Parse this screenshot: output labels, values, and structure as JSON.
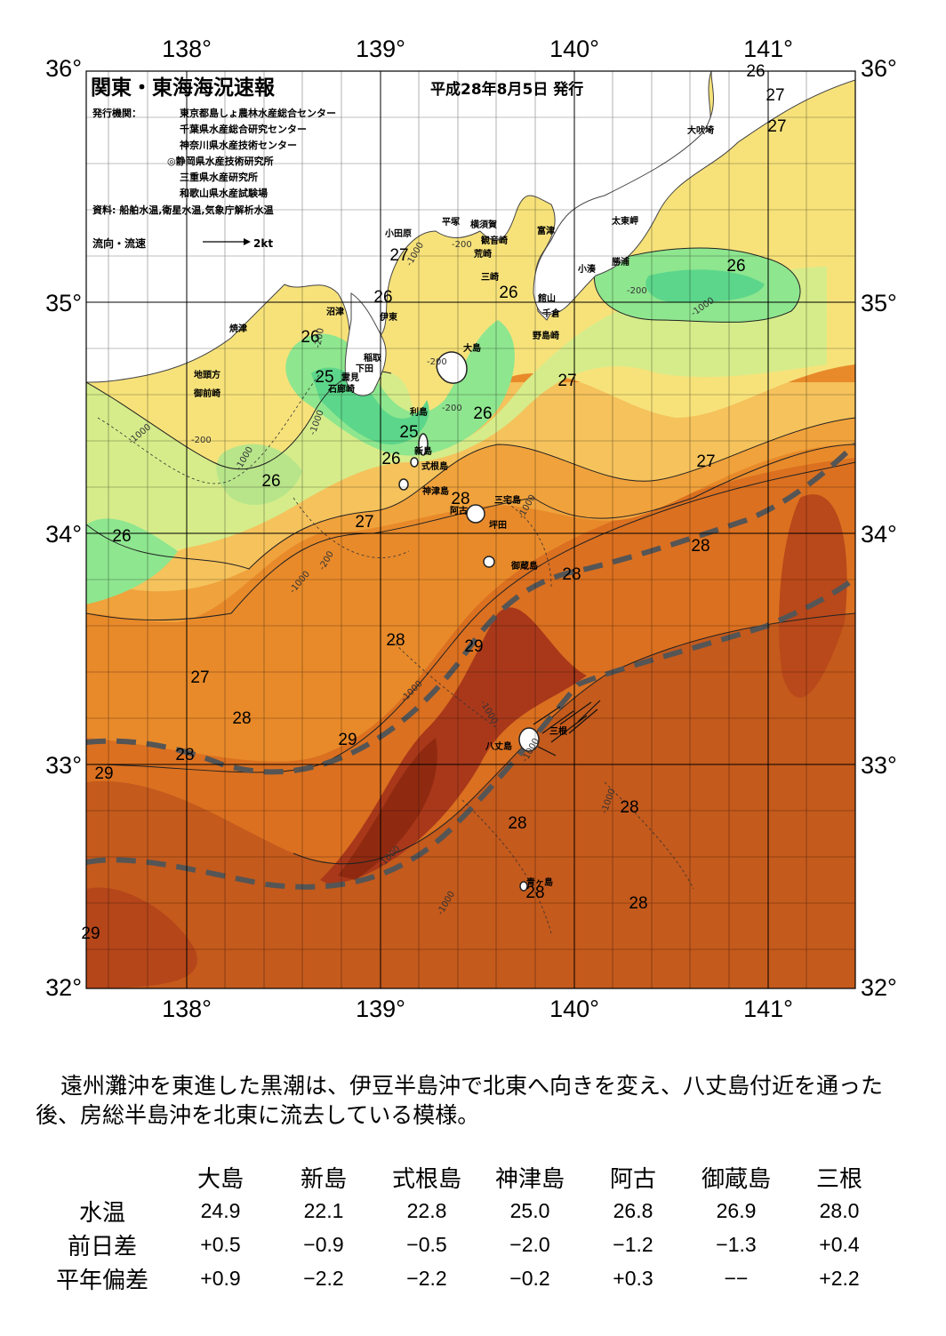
{
  "header": {
    "title": "関東・東海海況速報",
    "issue_date": "平成28年8月5日 発行",
    "issuer_label": "発行機関：",
    "issuers": [
      "東京都島しょ農林水産総合センター",
      "千葉県水産総合研究センター",
      "神奈川県水産技術センター",
      "◎静岡県水産技術研究所",
      "三重県水産研究所",
      "和歌山県水産試験場"
    ],
    "source": "資料: 船舶水温,衛星水温,気象庁解析水温",
    "current_legend": "流向・流速",
    "current_scale": "2kt"
  },
  "axes": {
    "lon_labels": [
      "138°",
      "139°",
      "140°",
      "141°"
    ],
    "lat_labels": [
      "36°",
      "35°",
      "34°",
      "33°",
      "32°"
    ]
  },
  "isotherm_labels": [
    "26",
    "27",
    "27",
    "27",
    "26",
    "26",
    "26",
    "26",
    "25",
    "27",
    "26",
    "25",
    "26",
    "27",
    "26",
    "26",
    "28",
    "27",
    "28",
    "28",
    "28",
    "28",
    "29",
    "27",
    "28",
    "29",
    "28",
    "29",
    "28",
    "28",
    "28",
    "28",
    "28",
    "29"
  ],
  "depth_labels": [
    "-200",
    "-1000",
    "-200",
    "-200",
    "-1000",
    "-1000",
    "-200",
    "-1000",
    "-1000",
    "-200",
    "-1000",
    "-1000",
    "-200",
    "-1000",
    "-1000",
    "-1000",
    "-1000",
    "-1000",
    "-1000",
    "-200"
  ],
  "places": [
    "小田原",
    "平塚",
    "横須賀",
    "観音崎",
    "富津",
    "太東岬",
    "大吠埼",
    "荒崎",
    "三崎",
    "館山",
    "勝浦",
    "小湊",
    "千倉",
    "野島崎",
    "沼津",
    "伊東",
    "焼津",
    "稲取",
    "下田",
    "雲見",
    "石廊崎",
    "地頭方",
    "御前崎",
    "大島",
    "利島",
    "新島",
    "式根島",
    "神津島",
    "阿古",
    "坪田",
    "三宅島",
    "御蔵島",
    "八丈島",
    "三根",
    "青ヶ島"
  ],
  "colors": {
    "sea_24": "#5cd68a",
    "sea_25": "#8ee68f",
    "sea_26": "#d6ec8a",
    "sea_26b": "#f7e27a",
    "sea_27": "#f5c25c",
    "sea_27b": "#f0a23c",
    "sea_28": "#e57f22",
    "sea_28b": "#d0661a",
    "sea_29": "#b5461a",
    "sea_29b": "#8f2a10",
    "land": "#ffffff",
    "kuroshio": "#555555"
  },
  "summary": "遠州灘沖を東進した黒潮は、伊豆半島沖で北東へ向きを変え、八丈島付近を通った後、房総半島沖を北東に流去している模様。",
  "table": {
    "columns": [
      "大島",
      "新島",
      "式根島",
      "神津島",
      "阿古",
      "御蔵島",
      "三根"
    ],
    "rows": [
      {
        "label": "水温",
        "values": [
          "24.9",
          "22.1",
          "22.8",
          "25.0",
          "26.8",
          "26.9",
          "28.0"
        ]
      },
      {
        "label": "前日差",
        "values": [
          "+0.5",
          "−0.9",
          "−0.5",
          "−2.0",
          "−1.2",
          "−1.3",
          "+0.4"
        ]
      },
      {
        "label": "平年偏差",
        "values": [
          "+0.9",
          "−2.2",
          "−2.2",
          "−0.2",
          "+0.3",
          "−−",
          "+2.2"
        ]
      }
    ]
  }
}
